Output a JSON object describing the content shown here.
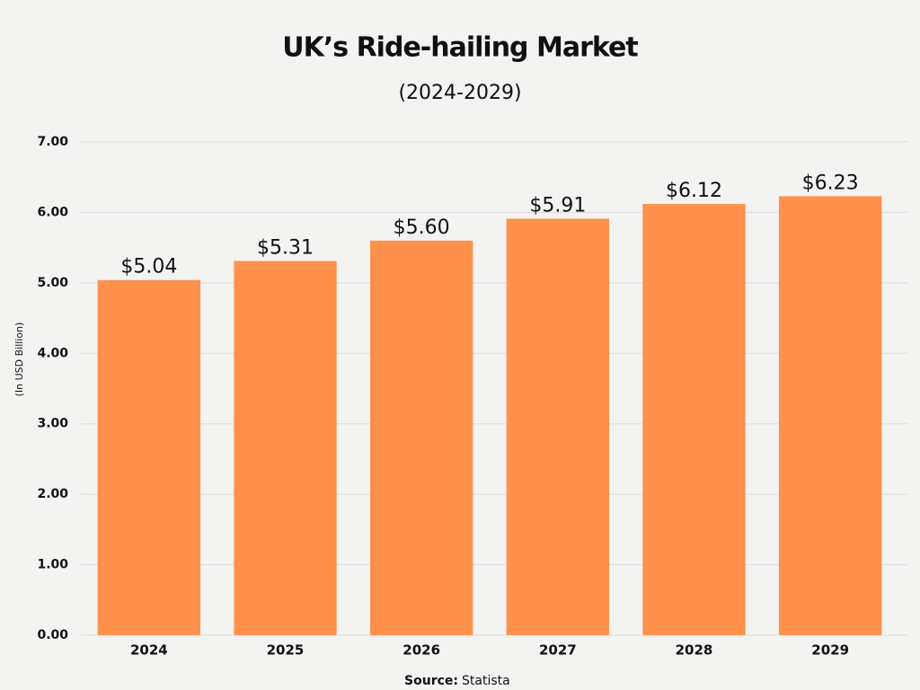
{
  "chart_data": {
    "type": "bar",
    "title": "UK’s Ride-hailing Market",
    "subtitle": "(2024-2029)",
    "y_label": "(In USD Billion)",
    "categories": [
      "2024",
      "2025",
      "2026",
      "2027",
      "2028",
      "2029"
    ],
    "values": [
      5.04,
      5.31,
      5.6,
      5.91,
      6.12,
      6.23
    ],
    "value_labels": [
      "$5.04",
      "$5.31",
      "$5.60",
      "$5.91",
      "$6.12",
      "$6.23"
    ],
    "color": "#ff914d",
    "ylim": [
      0,
      7
    ],
    "yticks": [
      {
        "value": 0,
        "label": "0.00"
      },
      {
        "value": 1,
        "label": "1.00"
      },
      {
        "value": 2,
        "label": "2.00"
      },
      {
        "value": 3,
        "label": "3.00"
      },
      {
        "value": 4,
        "label": "4.00"
      },
      {
        "value": 5,
        "label": "5.00"
      },
      {
        "value": 6,
        "label": "6.00"
      },
      {
        "value": 7,
        "label": "7.00"
      }
    ],
    "grid": true,
    "source_label": "Source:",
    "source": "Statista"
  }
}
